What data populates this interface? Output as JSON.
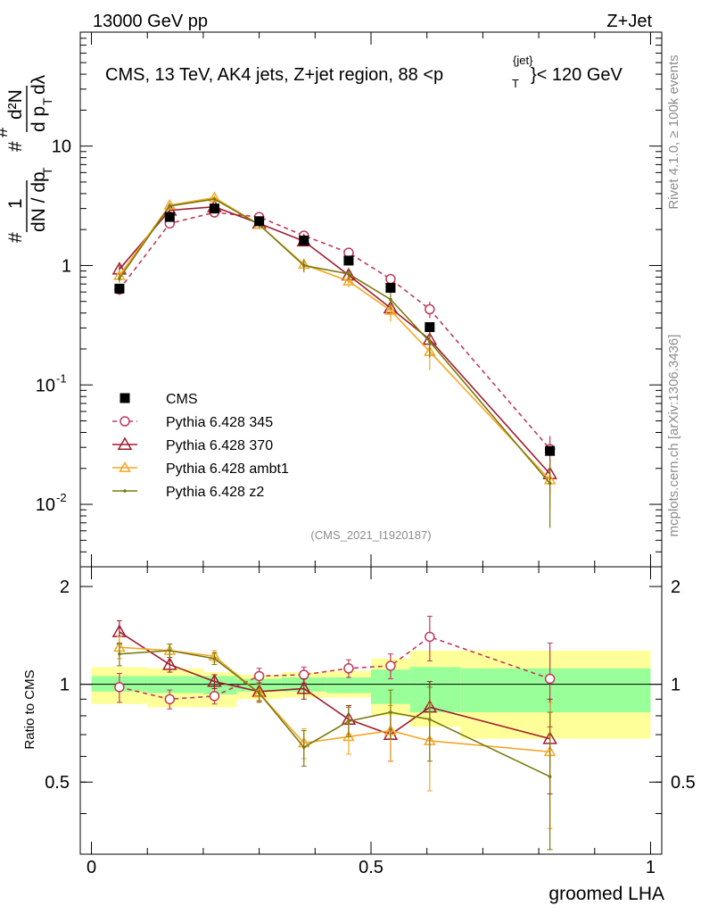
{
  "header": {
    "left": "13000 GeV pp",
    "right": "Z+Jet"
  },
  "side_labels": {
    "rivet": "Rivet 4.1.0, ≥ 100k events",
    "mcplots": "mcplots.cern.ch [arXiv:1306.3436]"
  },
  "chart_data": {
    "type": "line",
    "title": "CMS, 13 TeV, AK4 jets, Z+jet region, 88 <p_T^{jet}< 120 GeV",
    "title_parts": {
      "main": "CMS, 13 TeV, AK4 jets, Z+jet region, 88 <p",
      "sup": "{jet}",
      "sub": "T",
      "tail": "}< 120 GeV"
    },
    "xlabel": "groomed LHA",
    "ylabel_top": "1 / dN/dp_T d^2N/dp_T dλ",
    "ylabel_bottom": "Ratio to CMS",
    "analysis_id": "(CMS_2021_I1920187)",
    "xlim": [
      -0.02,
      1.02
    ],
    "ylim_main": [
      0.003,
      90
    ],
    "ylim_ratio": [
      0.3,
      2.3
    ],
    "x_ticks": [
      "0",
      "0.5",
      "1"
    ],
    "y_ticks_main": [
      "10^{-2}",
      "10^{-1}",
      "1",
      "10"
    ],
    "y_ticks_ratio": [
      "0.5",
      "1",
      "2"
    ],
    "bins": [
      [
        0.0,
        0.1
      ],
      [
        0.1,
        0.2
      ],
      [
        0.2,
        0.26
      ],
      [
        0.26,
        0.34
      ],
      [
        0.34,
        0.42
      ],
      [
        0.42,
        0.5
      ],
      [
        0.5,
        0.57
      ],
      [
        0.57,
        0.66
      ],
      [
        0.66,
        1.0
      ]
    ],
    "x": [
      0.05,
      0.14,
      0.22,
      0.3,
      0.38,
      0.46,
      0.535,
      0.605,
      0.82
    ],
    "band_total": [
      [
        0.87,
        1.13
      ],
      [
        0.85,
        1.12
      ],
      [
        0.85,
        1.09
      ],
      [
        0.9,
        1.07
      ],
      [
        0.91,
        1.09
      ],
      [
        0.91,
        1.1
      ],
      [
        0.8,
        1.2
      ],
      [
        0.74,
        1.27
      ],
      [
        0.68,
        1.27
      ]
    ],
    "band_stat": [
      [
        0.95,
        1.06
      ],
      [
        0.94,
        1.06
      ],
      [
        0.93,
        1.06
      ],
      [
        0.95,
        1.04
      ],
      [
        0.95,
        1.05
      ],
      [
        0.94,
        1.05
      ],
      [
        0.87,
        1.11
      ],
      [
        0.82,
        1.13
      ],
      [
        0.82,
        1.12
      ]
    ],
    "series": [
      {
        "name": "CMS",
        "style": "data",
        "color": "#000000",
        "values": [
          0.64,
          2.55,
          3.0,
          2.35,
          1.62,
          1.1,
          0.65,
          0.305,
          0.028
        ],
        "ratio": [
          1,
          1,
          1,
          1,
          1,
          1,
          1,
          1,
          1
        ]
      },
      {
        "name": "Pythia 6.428 345",
        "style": "dashed-circle",
        "color": "#c0395a",
        "values": [
          0.63,
          2.25,
          2.78,
          2.55,
          1.78,
          1.28,
          0.77,
          0.43,
          0.029
        ],
        "ratio": [
          0.98,
          0.9,
          0.92,
          1.06,
          1.07,
          1.12,
          1.14,
          1.4,
          1.04
        ],
        "ratio_err": [
          0.1,
          0.06,
          0.05,
          0.06,
          0.06,
          0.07,
          0.1,
          0.22,
          0.3
        ]
      },
      {
        "name": "Pythia 6.428 370",
        "style": "solid-triangle",
        "color": "#a01c2e",
        "values": [
          0.93,
          2.9,
          3.1,
          2.25,
          1.6,
          0.83,
          0.44,
          0.24,
          0.018
        ],
        "ratio": [
          1.45,
          1.15,
          1.02,
          0.95,
          0.97,
          0.78,
          0.7,
          0.85,
          0.68
        ],
        "ratio_err": [
          0.12,
          0.06,
          0.05,
          0.06,
          0.07,
          0.08,
          0.12,
          0.17,
          0.22
        ]
      },
      {
        "name": "Pythia 6.428 ambt1",
        "style": "solid-triangle",
        "color": "#f5a623",
        "values": [
          0.82,
          3.2,
          3.7,
          2.2,
          1.02,
          0.74,
          0.42,
          0.19,
          0.016
        ],
        "ratio": [
          1.3,
          1.27,
          1.22,
          0.94,
          0.66,
          0.69,
          0.72,
          0.67,
          0.62
        ],
        "ratio_err": [
          0.1,
          0.06,
          0.05,
          0.06,
          0.07,
          0.08,
          0.14,
          0.2,
          0.26
        ]
      },
      {
        "name": "Pythia 6.428 z2",
        "style": "solid-dot",
        "color": "#7a7a10",
        "values": [
          0.78,
          3.15,
          3.6,
          2.2,
          1.0,
          0.85,
          0.52,
          0.23,
          0.015
        ],
        "ratio": [
          1.24,
          1.27,
          1.2,
          0.94,
          0.64,
          0.77,
          0.82,
          0.78,
          0.52
        ],
        "ratio_err": [
          0.1,
          0.06,
          0.05,
          0.06,
          0.08,
          0.08,
          0.14,
          0.2,
          0.3
        ]
      }
    ]
  }
}
